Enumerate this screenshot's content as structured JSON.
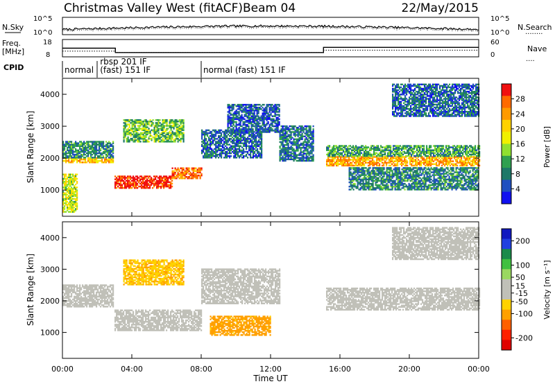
{
  "header": {
    "title": "Christmas Valley West (fitACF)",
    "beam": "Beam 04",
    "date": "22/May/2015"
  },
  "labels": {
    "nsky": "N.Sky",
    "nsearch": "N.Search",
    "nsearch_dots": "........",
    "freq": "Freq.",
    "freq_unit": "[MHz]",
    "nave": "Nave",
    "nave_dots": "....",
    "cpid": "CPID",
    "slant_range": "Slant Range [km]",
    "time_axis": "Time UT",
    "power_bar": "Power [dB]",
    "velocity_bar": "Velocity [m s⁻¹]"
  },
  "noise_panel": {
    "left_ticks": [
      "10^5",
      "10^0"
    ],
    "right_ticks": [
      "10^5",
      "10^0"
    ]
  },
  "freq_panel": {
    "left_ticks": [
      "18",
      "8"
    ],
    "right_ticks": [
      "60",
      "0"
    ],
    "freq_mhz": [
      [
        0,
        13
      ],
      [
        3.05,
        13
      ],
      [
        3.05,
        10.5
      ],
      [
        15.05,
        10.5
      ],
      [
        15.05,
        13.5
      ],
      [
        24,
        13.5
      ]
    ],
    "nave": [
      [
        0,
        20
      ],
      [
        3.05,
        20
      ],
      [
        3.05,
        15
      ],
      [
        15.05,
        15
      ],
      [
        15.05,
        23
      ],
      [
        24,
        23
      ]
    ]
  },
  "cpid_panel": {
    "modes": [
      {
        "label": "normal",
        "start": 0.0,
        "end": 1.9
      },
      {
        "label": "rbsp 201 IF",
        "start": 2.05,
        "end": 3.0
      },
      {
        "label": "(fast) 151 IF",
        "start": 2.05,
        "end": 8.0
      },
      {
        "label": "normal (fast) 151 IF",
        "start": 8.0,
        "end": 24.0
      }
    ]
  },
  "power_colorbar": {
    "ticks": [
      "28",
      "24",
      "20",
      "16",
      "12",
      "8",
      "4"
    ],
    "colors": [
      "#f01010",
      "#ff6a00",
      "#ff9a00",
      "#ffd200",
      "#f0f000",
      "#90e030",
      "#30a050",
      "#1e7868",
      "#2050c0",
      "#1010f0"
    ]
  },
  "velocity_colorbar": {
    "ticks": [
      "200",
      "100",
      "50",
      "15",
      "-15",
      "-50",
      "-100",
      "-200"
    ],
    "colors": [
      "#1018c0",
      "#2040e0",
      "#1a8a4a",
      "#40c040",
      "#9ad860",
      "#c0c0b8",
      "#c0c0b8",
      "#ffd200",
      "#ffa000",
      "#ff6000",
      "#ff2000",
      "#e00000"
    ]
  },
  "chart_data": [
    {
      "type": "heatmap",
      "panel": "Power",
      "xlabel": "Time UT",
      "ylabel": "Slant Range [km]",
      "x_ticks": [
        "00:00",
        "04:00",
        "08:00",
        "12:00",
        "16:00",
        "20:00",
        "00:00"
      ],
      "y_ticks": [
        "1000",
        "2000",
        "3000",
        "4000"
      ],
      "xlim_hours": [
        0,
        24
      ],
      "ylim_km": [
        180,
        4500
      ],
      "colorbar": "Power [dB]",
      "clim": [
        0,
        30
      ],
      "regions": [
        {
          "t0": 0.0,
          "t1": 2.9,
          "r0": 1850,
          "r1": 2000,
          "value": 20
        },
        {
          "t0": 0.0,
          "t1": 2.9,
          "r0": 2000,
          "r1": 2500,
          "value": 8
        },
        {
          "t0": 0.0,
          "t1": 0.8,
          "r0": 300,
          "r1": 1500,
          "value": 16
        },
        {
          "t0": 3.0,
          "t1": 6.3,
          "r0": 1050,
          "r1": 1450,
          "value": 28
        },
        {
          "t0": 6.3,
          "t1": 8.0,
          "r0": 1350,
          "r1": 1700,
          "value": 24
        },
        {
          "t0": 3.5,
          "t1": 7.0,
          "r0": 2500,
          "r1": 3200,
          "value": 12
        },
        {
          "t0": 8.0,
          "t1": 11.5,
          "r0": 2000,
          "r1": 2900,
          "value": 6
        },
        {
          "t0": 9.5,
          "t1": 12.5,
          "r0": 2800,
          "r1": 3700,
          "value": 5
        },
        {
          "t0": 12.5,
          "t1": 14.5,
          "r0": 1900,
          "r1": 3000,
          "value": 7
        },
        {
          "t0": 15.2,
          "t1": 24.0,
          "r0": 1750,
          "r1": 2050,
          "value": 22
        },
        {
          "t0": 15.2,
          "t1": 24.0,
          "r0": 2050,
          "r1": 2400,
          "value": 10
        },
        {
          "t0": 16.5,
          "t1": 24.0,
          "r0": 1000,
          "r1": 1700,
          "value": 8
        },
        {
          "t0": 19.0,
          "t1": 24.0,
          "r0": 3300,
          "r1": 4300,
          "value": 6
        }
      ]
    },
    {
      "type": "heatmap",
      "panel": "Velocity",
      "xlabel": "Time UT",
      "ylabel": "Slant Range [km]",
      "x_ticks": [
        "00:00",
        "04:00",
        "08:00",
        "12:00",
        "16:00",
        "20:00",
        "00:00"
      ],
      "y_ticks": [
        "1000",
        "2000",
        "3000",
        "4000"
      ],
      "xlim_hours": [
        0,
        24
      ],
      "ylim_km": [
        180,
        4500
      ],
      "colorbar": "Velocity [m s-1]",
      "clim": [
        -200,
        200
      ],
      "regions": [
        {
          "t0": 0.0,
          "t1": 2.9,
          "r0": 1800,
          "r1": 2500,
          "value": 0
        },
        {
          "t0": 3.0,
          "t1": 8.0,
          "r0": 1050,
          "r1": 1700,
          "value": 0
        },
        {
          "t0": 3.5,
          "t1": 7.0,
          "r0": 2500,
          "r1": 3300,
          "value": -60
        },
        {
          "t0": 8.0,
          "t1": 12.5,
          "r0": 1900,
          "r1": 3000,
          "value": 5
        },
        {
          "t0": 8.5,
          "t1": 12.0,
          "r0": 900,
          "r1": 1500,
          "value": -80
        },
        {
          "t0": 15.2,
          "t1": 24.0,
          "r0": 1700,
          "r1": 2400,
          "value": 0
        },
        {
          "t0": 19.0,
          "t1": 24.0,
          "r0": 3300,
          "r1": 4300,
          "value": 0
        }
      ]
    }
  ]
}
